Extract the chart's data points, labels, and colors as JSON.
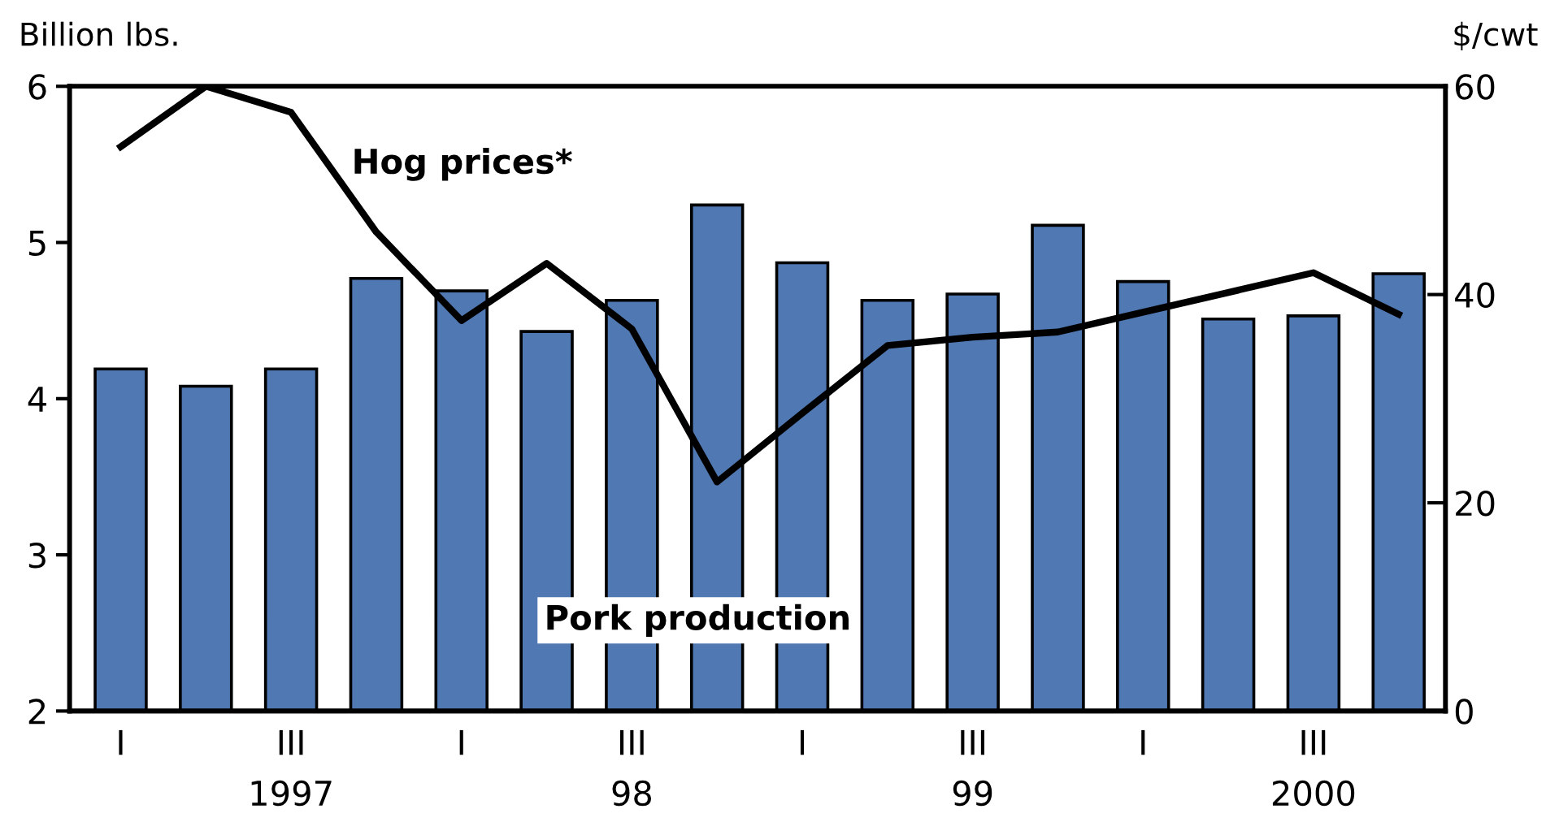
{
  "chart_data": {
    "type": "bar",
    "categories": [
      "I",
      null,
      "III\n1997",
      null,
      "I",
      null,
      "III\n98",
      null,
      "I",
      null,
      "III\n99",
      null,
      "I",
      null,
      "III\n2000",
      null
    ],
    "ylabel": "Billion lbs.",
    "y2label": "$/cwt",
    "series": [
      {
        "name": "Pork production",
        "color": "#5078b3",
        "values": [
          4.19,
          4.08,
          4.19,
          4.77,
          4.69,
          4.43,
          4.63,
          5.24,
          4.87,
          4.63,
          4.67,
          5.11,
          4.75,
          4.51,
          4.53,
          4.8
        ]
      },
      {
        "name": "Hog prices*",
        "type": "line",
        "axis": "y2",
        "color": "#000000",
        "values": [
          54.2,
          60,
          57.5,
          46.0,
          37.5,
          43.0,
          36.7,
          22.0,
          28.6,
          35.1,
          35.9,
          36.4,
          38.3,
          40.2,
          42.1,
          38.1
        ]
      }
    ],
    "ylim": [
      2,
      6
    ],
    "yticks": [
      2,
      3,
      4,
      5,
      6
    ],
    "y2lim": [
      0,
      60
    ],
    "y2ticks": [
      0,
      20,
      40,
      60
    ],
    "grid": false,
    "legend": false
  }
}
